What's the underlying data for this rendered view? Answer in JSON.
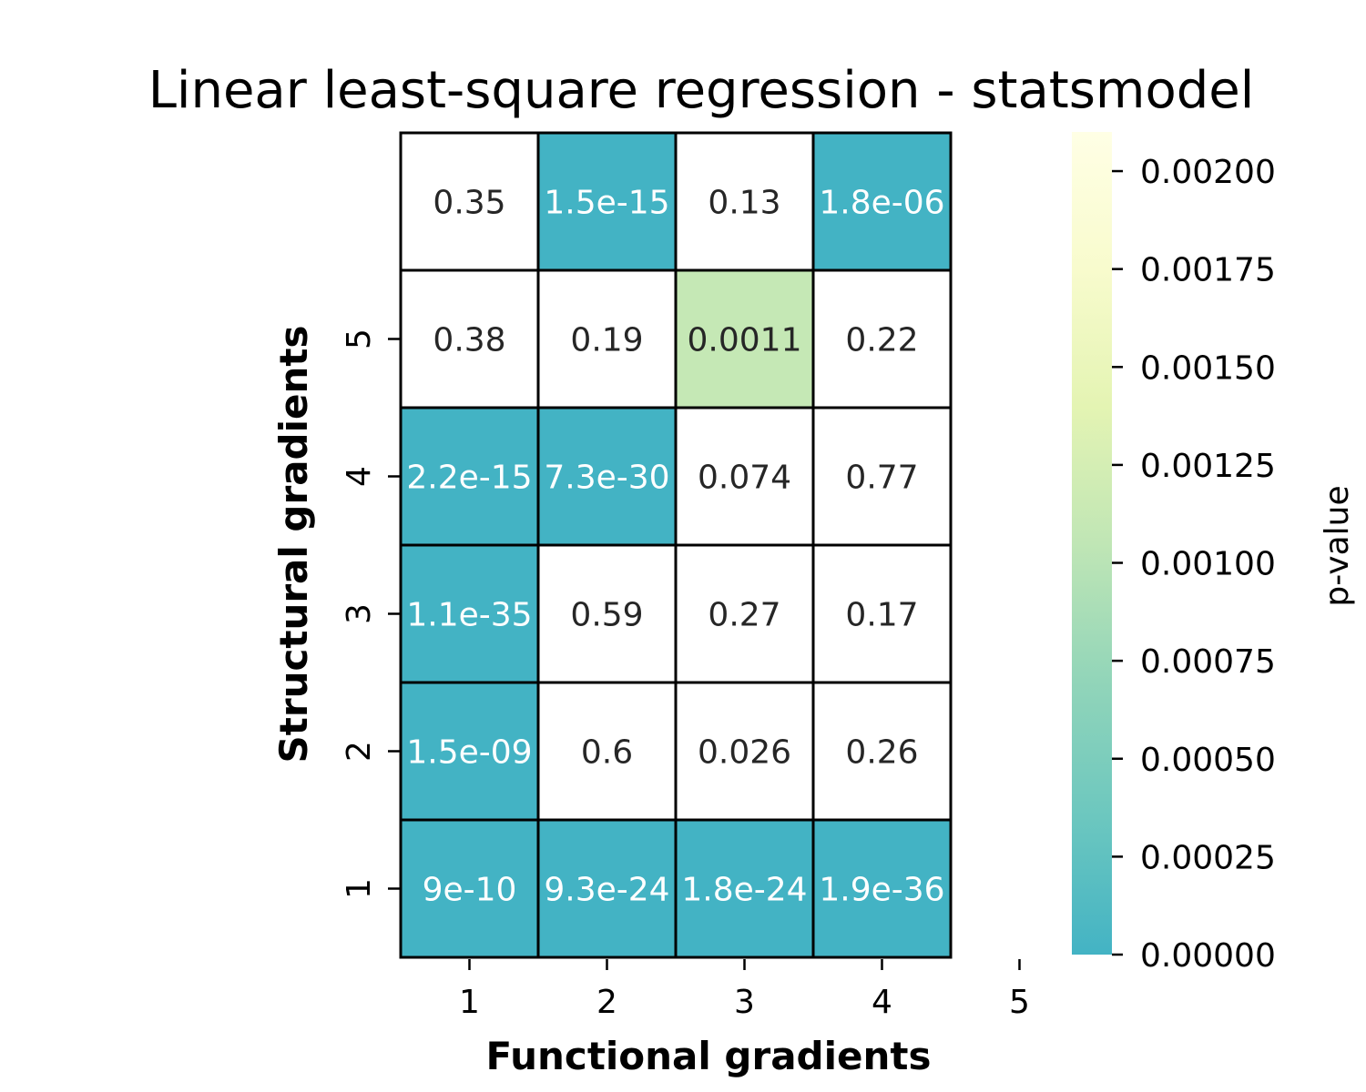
{
  "chart_data": {
    "type": "heatmap",
    "title": "Linear least-square regression - statsmodel",
    "xlabel": "Functional gradients",
    "ylabel": "Structural gradients",
    "x_tick_labels": [
      "1",
      "2",
      "3",
      "4",
      "5"
    ],
    "y_tick_labels": [
      "1",
      "2",
      "3",
      "4",
      "5"
    ],
    "colorbar": {
      "label": "p-value",
      "range": [
        0,
        0.0021
      ],
      "ticks": [
        "0.00000",
        "0.00025",
        "0.00050",
        "0.00075",
        "0.00100",
        "0.00125",
        "0.00150",
        "0.00175",
        "0.00200"
      ],
      "colors": [
        "#43b3c4",
        "#6cc7bf",
        "#92d5b9",
        "#c0e6b5",
        "#e4f4b3",
        "#f8fbcd",
        "#ffffe5"
      ],
      "over_color": "#ffffff"
    },
    "rows_top_to_bottom": [
      {
        "labels": [
          "0.35",
          "1.5e-15",
          "0.13",
          "1.8e-06"
        ],
        "values": [
          0.35,
          1.5e-15,
          0.13,
          1.8e-06
        ]
      },
      {
        "labels": [
          "0.38",
          "0.19",
          "0.0011",
          "0.22"
        ],
        "values": [
          0.38,
          0.19,
          0.0011,
          0.22
        ]
      },
      {
        "labels": [
          "2.2e-15",
          "7.3e-30",
          "0.074",
          "0.77"
        ],
        "values": [
          2.2e-15,
          7.3e-30,
          0.074,
          0.77
        ]
      },
      {
        "labels": [
          "1.1e-35",
          "0.59",
          "0.27",
          "0.17"
        ],
        "values": [
          1.1e-35,
          0.59,
          0.27,
          0.17
        ]
      },
      {
        "labels": [
          "1.5e-09",
          "0.6",
          "0.026",
          "0.26"
        ],
        "values": [
          1.5e-09,
          0.6,
          0.026,
          0.26
        ]
      },
      {
        "labels": [
          "9e-10",
          "9.3e-24",
          "1.8e-24",
          "1.9e-36"
        ],
        "values": [
          9e-10,
          9.3e-24,
          1.8e-24,
          1.9e-36
        ]
      }
    ]
  }
}
